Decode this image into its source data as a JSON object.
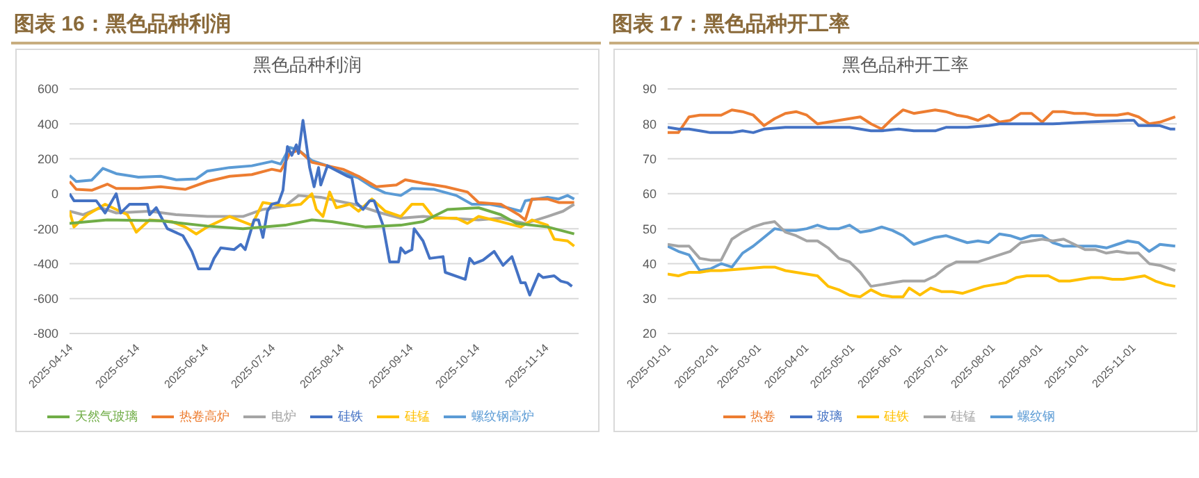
{
  "chart_data": [
    {
      "type": "line",
      "title": "图表 16：黑色品种利润",
      "subtitle": "黑色品种利润",
      "xlim": [
        "2025-04-14",
        "2025-11-29"
      ],
      "xticks": [
        "2025-04-14",
        "2025-05-14",
        "2025-06-14",
        "2025-07-14",
        "2025-08-14",
        "2025-09-14",
        "2025-10-14",
        "2025-11-14"
      ],
      "ylim": [
        -800,
        600
      ],
      "yticks": [
        -800,
        -600,
        -400,
        -200,
        0,
        200,
        400,
        600
      ],
      "grid": "y",
      "legend": "bottom",
      "series": [
        {
          "name": "螺纹钢高炉",
          "color": "#5b9bd5",
          "x": [
            "2025-04-14",
            "2025-04-17",
            "2025-04-24",
            "2025-04-29",
            "2025-05-05",
            "2025-05-15",
            "2025-05-25",
            "2025-06-01",
            "2025-06-10",
            "2025-06-15",
            "2025-06-25",
            "2025-07-05",
            "2025-07-14",
            "2025-07-18",
            "2025-07-22",
            "2025-07-26",
            "2025-08-01",
            "2025-08-08",
            "2025-08-15",
            "2025-08-22",
            "2025-08-28",
            "2025-09-03",
            "2025-09-10",
            "2025-09-15",
            "2025-09-25",
            "2025-10-05",
            "2025-10-12",
            "2025-10-20",
            "2025-10-28",
            "2025-11-03",
            "2025-11-05",
            "2025-11-15",
            "2025-11-20",
            "2025-11-24",
            "2025-11-27"
          ],
          "values": [
            105,
            70,
            78,
            145,
            115,
            95,
            100,
            80,
            85,
            130,
            150,
            160,
            185,
            170,
            265,
            250,
            190,
            160,
            120,
            90,
            40,
            5,
            -10,
            30,
            25,
            -10,
            -60,
            -60,
            -80,
            -100,
            -40,
            -20,
            -30,
            -10,
            -30
          ]
        },
        {
          "name": "热卷高炉",
          "color": "#ed7d31",
          "x": [
            "2025-04-14",
            "2025-04-17",
            "2025-04-24",
            "2025-05-01",
            "2025-05-05",
            "2025-05-15",
            "2025-05-25",
            "2025-06-05",
            "2025-06-15",
            "2025-06-25",
            "2025-07-05",
            "2025-07-14",
            "2025-07-18",
            "2025-07-22",
            "2025-07-26",
            "2025-08-01",
            "2025-08-08",
            "2025-08-15",
            "2025-08-22",
            "2025-08-30",
            "2025-09-08",
            "2025-09-12",
            "2025-09-20",
            "2025-09-30",
            "2025-10-10",
            "2025-10-15",
            "2025-10-25",
            "2025-11-02",
            "2025-11-05",
            "2025-11-08",
            "2025-11-15",
            "2025-11-20",
            "2025-11-27"
          ],
          "values": [
            70,
            25,
            20,
            55,
            30,
            30,
            40,
            25,
            70,
            100,
            110,
            140,
            130,
            230,
            250,
            180,
            160,
            140,
            100,
            40,
            50,
            80,
            60,
            40,
            10,
            -50,
            -60,
            -120,
            -150,
            -30,
            -30,
            -50,
            -50
          ]
        },
        {
          "name": "电炉",
          "color": "#a5a5a5",
          "x": [
            "2025-04-14",
            "2025-04-20",
            "2025-04-28",
            "2025-05-05",
            "2025-05-20",
            "2025-06-01",
            "2025-06-15",
            "2025-07-01",
            "2025-07-10",
            "2025-07-20",
            "2025-07-26",
            "2025-08-05",
            "2025-08-12",
            "2025-08-20",
            "2025-09-01",
            "2025-09-10",
            "2025-09-20",
            "2025-10-01",
            "2025-10-15",
            "2025-10-25",
            "2025-11-05",
            "2025-11-15",
            "2025-11-22",
            "2025-11-27"
          ],
          "values": [
            -100,
            -120,
            -80,
            -110,
            -100,
            -120,
            -130,
            -130,
            -90,
            -70,
            -10,
            -20,
            -40,
            -60,
            -110,
            -140,
            -130,
            -140,
            -150,
            -140,
            -170,
            -130,
            -100,
            -60
          ]
        },
        {
          "name": "硅锰",
          "color": "#ffc000",
          "x": [
            "2025-04-14",
            "2025-04-16",
            "2025-04-22",
            "2025-04-30",
            "2025-05-10",
            "2025-05-14",
            "2025-05-20",
            "2025-05-30",
            "2025-06-05",
            "2025-06-10",
            "2025-06-15",
            "2025-06-25",
            "2025-07-05",
            "2025-07-10",
            "2025-07-15",
            "2025-07-20",
            "2025-07-27",
            "2025-08-01",
            "2025-08-03",
            "2025-08-06",
            "2025-08-09",
            "2025-08-12",
            "2025-08-18",
            "2025-08-22",
            "2025-08-28",
            "2025-09-03",
            "2025-09-10",
            "2025-09-15",
            "2025-09-20",
            "2025-09-25",
            "2025-10-05",
            "2025-10-10",
            "2025-10-15",
            "2025-10-25",
            "2025-11-03",
            "2025-11-08",
            "2025-11-15",
            "2025-11-18",
            "2025-11-24",
            "2025-11-27"
          ],
          "values": [
            -100,
            -190,
            -120,
            -60,
            -120,
            -220,
            -150,
            -160,
            -190,
            -230,
            -190,
            -130,
            -180,
            -50,
            -60,
            -70,
            -60,
            0,
            -90,
            -130,
            10,
            -80,
            -60,
            -100,
            -30,
            -100,
            -130,
            -60,
            -60,
            -140,
            -140,
            -170,
            -130,
            -160,
            -190,
            -150,
            -180,
            -260,
            -270,
            -300
          ]
        },
        {
          "name": "硅铁",
          "color": "#4472c4",
          "x": [
            "2025-04-14",
            "2025-04-16",
            "2025-04-26",
            "2025-04-30",
            "2025-05-05",
            "2025-05-07",
            "2025-05-11",
            "2025-05-19",
            "2025-05-20",
            "2025-05-23",
            "2025-05-28",
            "2025-06-04",
            "2025-06-08",
            "2025-06-11",
            "2025-06-16",
            "2025-06-18",
            "2025-06-21",
            "2025-06-27",
            "2025-06-30",
            "2025-07-02",
            "2025-07-06",
            "2025-07-08",
            "2025-07-10",
            "2025-07-12",
            "2025-07-14",
            "2025-07-17",
            "2025-07-19",
            "2025-07-21",
            "2025-07-23",
            "2025-07-25",
            "2025-07-26",
            "2025-07-28",
            "2025-07-31",
            "2025-08-02",
            "2025-08-04",
            "2025-08-05",
            "2025-08-08",
            "2025-08-17",
            "2025-08-19",
            "2025-08-21",
            "2025-08-24",
            "2025-08-27",
            "2025-08-29",
            "2025-09-02",
            "2025-09-05",
            "2025-09-09",
            "2025-09-10",
            "2025-09-12",
            "2025-09-15",
            "2025-09-16",
            "2025-09-20",
            "2025-09-23",
            "2025-09-29",
            "2025-09-30",
            "2025-10-09",
            "2025-10-11",
            "2025-10-13",
            "2025-10-17",
            "2025-10-22",
            "2025-10-26",
            "2025-10-30",
            "2025-11-03",
            "2025-11-05",
            "2025-11-07",
            "2025-11-11",
            "2025-11-13",
            "2025-11-18",
            "2025-11-21",
            "2025-11-24",
            "2025-11-26"
          ],
          "values": [
            0,
            -40,
            -40,
            -110,
            0,
            -110,
            -60,
            -60,
            -120,
            -80,
            -200,
            -240,
            -330,
            -430,
            -430,
            -370,
            -310,
            -320,
            -290,
            -320,
            -150,
            -150,
            -250,
            -100,
            -60,
            -50,
            20,
            270,
            220,
            280,
            230,
            420,
            150,
            40,
            150,
            50,
            160,
            100,
            90,
            -50,
            -90,
            -40,
            -40,
            -180,
            -390,
            -390,
            -310,
            -340,
            -320,
            -200,
            -270,
            -370,
            -360,
            -450,
            -490,
            -370,
            -400,
            -380,
            -330,
            -410,
            -360,
            -510,
            -510,
            -580,
            -460,
            -480,
            -470,
            -500,
            -510,
            -530
          ]
        },
        {
          "name": "天然气玻璃",
          "color": "#70ad47",
          "x": [
            "2025-04-14",
            "2025-05-01",
            "2025-05-25",
            "2025-06-15",
            "2025-07-01",
            "2025-07-20",
            "2025-08-01",
            "2025-08-10",
            "2025-08-25",
            "2025-09-10",
            "2025-09-20",
            "2025-10-01",
            "2025-10-15",
            "2025-10-25",
            "2025-11-01",
            "2025-11-15",
            "2025-11-27"
          ],
          "values": [
            -170,
            -150,
            -155,
            -185,
            -200,
            -180,
            -150,
            -160,
            -190,
            -180,
            -160,
            -90,
            -80,
            -120,
            -170,
            -190,
            -230
          ]
        }
      ]
    },
    {
      "type": "line",
      "title": "图表 17：黑色品种开工率",
      "subtitle": "黑色品种开工率",
      "xlim": [
        "2025-01-01",
        "2025-11-30"
      ],
      "xticks": [
        "2025-01-01",
        "2025-02-01",
        "2025-03-01",
        "2025-04-01",
        "2025-05-01",
        "2025-06-01",
        "2025-07-01",
        "2025-08-01",
        "2025-09-01",
        "2025-10-01",
        "2025-11-01"
      ],
      "ylim": [
        20,
        90
      ],
      "yticks": [
        20,
        30,
        40,
        50,
        60,
        70,
        80,
        90
      ],
      "grid": "y",
      "legend": "bottom",
      "series": [
        {
          "name": "螺纹钢",
          "color": "#5b9bd5",
          "x": [
            "2025-01-01",
            "2025-01-08",
            "2025-01-15",
            "2025-01-22",
            "2025-01-29",
            "2025-02-05",
            "2025-02-12",
            "2025-02-19",
            "2025-02-26",
            "2025-03-05",
            "2025-03-12",
            "2025-03-19",
            "2025-03-26",
            "2025-04-02",
            "2025-04-09",
            "2025-04-16",
            "2025-04-23",
            "2025-04-30",
            "2025-05-07",
            "2025-05-14",
            "2025-05-21",
            "2025-05-28",
            "2025-06-04",
            "2025-06-11",
            "2025-06-18",
            "2025-06-25",
            "2025-07-02",
            "2025-07-09",
            "2025-07-16",
            "2025-07-23",
            "2025-07-30",
            "2025-08-06",
            "2025-08-13",
            "2025-08-20",
            "2025-08-27",
            "2025-09-03",
            "2025-09-10",
            "2025-09-17",
            "2025-09-24",
            "2025-10-01",
            "2025-10-08",
            "2025-10-15",
            "2025-10-22",
            "2025-10-29",
            "2025-11-05",
            "2025-11-12",
            "2025-11-19",
            "2025-11-29"
          ],
          "values": [
            45,
            43.5,
            42.5,
            38,
            38.5,
            40,
            39,
            43,
            45,
            47.5,
            50,
            49.5,
            49.5,
            50,
            51,
            50,
            50,
            51,
            49,
            49.5,
            50.5,
            49.5,
            48,
            45.5,
            46.5,
            47.5,
            48,
            47,
            46,
            46.5,
            46,
            48.5,
            48,
            47,
            48,
            48,
            46,
            45,
            45,
            45,
            45,
            44.5,
            45.5,
            46.5,
            46,
            43.5,
            45.5,
            45
          ]
        },
        {
          "name": "热卷",
          "color": "#ed7d31",
          "x": [
            "2025-01-01",
            "2025-01-08",
            "2025-01-15",
            "2025-01-22",
            "2025-01-29",
            "2025-02-05",
            "2025-02-12",
            "2025-02-19",
            "2025-02-26",
            "2025-03-05",
            "2025-03-12",
            "2025-03-19",
            "2025-03-26",
            "2025-04-02",
            "2025-04-09",
            "2025-04-16",
            "2025-04-23",
            "2025-04-30",
            "2025-05-07",
            "2025-05-14",
            "2025-05-21",
            "2025-05-28",
            "2025-06-04",
            "2025-06-11",
            "2025-06-18",
            "2025-06-25",
            "2025-07-02",
            "2025-07-09",
            "2025-07-16",
            "2025-07-23",
            "2025-07-30",
            "2025-08-06",
            "2025-08-13",
            "2025-08-20",
            "2025-08-27",
            "2025-09-03",
            "2025-09-10",
            "2025-09-17",
            "2025-09-24",
            "2025-10-01",
            "2025-10-08",
            "2025-10-15",
            "2025-10-22",
            "2025-10-29",
            "2025-11-05",
            "2025-11-12",
            "2025-11-19",
            "2025-11-29"
          ],
          "values": [
            77.5,
            77.5,
            82,
            82.5,
            82.5,
            82.5,
            84,
            83.5,
            82.5,
            79.5,
            81.5,
            83,
            83.5,
            82.5,
            80,
            80.5,
            81,
            81.5,
            82,
            80,
            78.5,
            81.5,
            84,
            83,
            83.5,
            84,
            83.5,
            82.5,
            82,
            81,
            82.5,
            80.5,
            81,
            83,
            83,
            80.5,
            83.5,
            83.5,
            83,
            83,
            82.5,
            82.5,
            82.5,
            83,
            82,
            80,
            80.5,
            82
          ]
        },
        {
          "name": "硅锰",
          "color": "#a5a5a5",
          "x": [
            "2025-01-01",
            "2025-01-08",
            "2025-01-15",
            "2025-01-22",
            "2025-01-29",
            "2025-02-05",
            "2025-02-12",
            "2025-02-19",
            "2025-02-26",
            "2025-03-05",
            "2025-03-12",
            "2025-03-19",
            "2025-03-26",
            "2025-04-02",
            "2025-04-09",
            "2025-04-16",
            "2025-04-23",
            "2025-04-30",
            "2025-05-07",
            "2025-05-14",
            "2025-05-21",
            "2025-05-28",
            "2025-06-04",
            "2025-06-11",
            "2025-06-18",
            "2025-06-25",
            "2025-07-02",
            "2025-07-09",
            "2025-07-16",
            "2025-07-23",
            "2025-07-30",
            "2025-08-06",
            "2025-08-13",
            "2025-08-20",
            "2025-08-27",
            "2025-09-03",
            "2025-09-10",
            "2025-09-17",
            "2025-09-24",
            "2025-10-01",
            "2025-10-08",
            "2025-10-15",
            "2025-10-22",
            "2025-10-29",
            "2025-11-05",
            "2025-11-12",
            "2025-11-19",
            "2025-11-29"
          ],
          "values": [
            45.5,
            45,
            45,
            41.5,
            41,
            41,
            47,
            49,
            50.5,
            51.5,
            52,
            49,
            48,
            46.5,
            46.5,
            44.5,
            41.5,
            40.5,
            37.5,
            33.5,
            34,
            34.5,
            35,
            35,
            35,
            36.5,
            39,
            40.5,
            40.5,
            40.5,
            41.5,
            42.5,
            43.5,
            46,
            46.5,
            47,
            46.5,
            47,
            45.5,
            44,
            44,
            43,
            43.5,
            43,
            43,
            40,
            39.5,
            38
          ]
        },
        {
          "name": "硅铁",
          "color": "#ffc000",
          "x": [
            "2025-01-01",
            "2025-01-08",
            "2025-01-15",
            "2025-01-22",
            "2025-01-29",
            "2025-02-05",
            "2025-02-19",
            "2025-03-05",
            "2025-03-12",
            "2025-03-19",
            "2025-03-26",
            "2025-04-02",
            "2025-04-09",
            "2025-04-16",
            "2025-04-23",
            "2025-04-30",
            "2025-05-07",
            "2025-05-14",
            "2025-05-21",
            "2025-05-28",
            "2025-06-04",
            "2025-06-08",
            "2025-06-15",
            "2025-06-22",
            "2025-06-29",
            "2025-07-06",
            "2025-07-13",
            "2025-07-20",
            "2025-07-27",
            "2025-08-03",
            "2025-08-10",
            "2025-08-17",
            "2025-08-24",
            "2025-08-31",
            "2025-09-07",
            "2025-09-14",
            "2025-09-21",
            "2025-09-28",
            "2025-10-05",
            "2025-10-12",
            "2025-10-19",
            "2025-10-26",
            "2025-11-02",
            "2025-11-09",
            "2025-11-16",
            "2025-11-23",
            "2025-11-29"
          ],
          "values": [
            37,
            36.5,
            37.5,
            37.5,
            38,
            38,
            38.5,
            39,
            39,
            38,
            37.5,
            37,
            36.5,
            33.5,
            32.5,
            31,
            30.5,
            32.5,
            31,
            30.5,
            30.5,
            33,
            31,
            33,
            32,
            32,
            31.5,
            32.5,
            33.5,
            34,
            34.5,
            36,
            36.5,
            36.5,
            36.5,
            35,
            35,
            35.5,
            36,
            36,
            35.5,
            35.5,
            36,
            36.5,
            35,
            34,
            33.5
          ]
        },
        {
          "name": "玻璃",
          "color": "#4472c4",
          "x": [
            "2025-01-01",
            "2025-01-08",
            "2025-01-15",
            "2025-01-22",
            "2025-01-29",
            "2025-02-12",
            "2025-02-19",
            "2025-02-26",
            "2025-03-05",
            "2025-03-19",
            "2025-04-09",
            "2025-04-30",
            "2025-05-07",
            "2025-05-14",
            "2025-05-21",
            "2025-06-01",
            "2025-06-11",
            "2025-06-25",
            "2025-07-02",
            "2025-07-16",
            "2025-07-30",
            "2025-08-06",
            "2025-08-31",
            "2025-09-10",
            "2025-10-01",
            "2025-10-29",
            "2025-11-02",
            "2025-11-05",
            "2025-11-19",
            "2025-11-26",
            "2025-11-29"
          ],
          "values": [
            79,
            78.5,
            78.5,
            78,
            77.5,
            77.5,
            78,
            77.5,
            78.5,
            79,
            79,
            79,
            78.5,
            78,
            78,
            78.5,
            78,
            78,
            79,
            79,
            79.5,
            80,
            80,
            80,
            80.5,
            81,
            81,
            79.5,
            79.5,
            78.5,
            78.5
          ]
        }
      ]
    }
  ]
}
